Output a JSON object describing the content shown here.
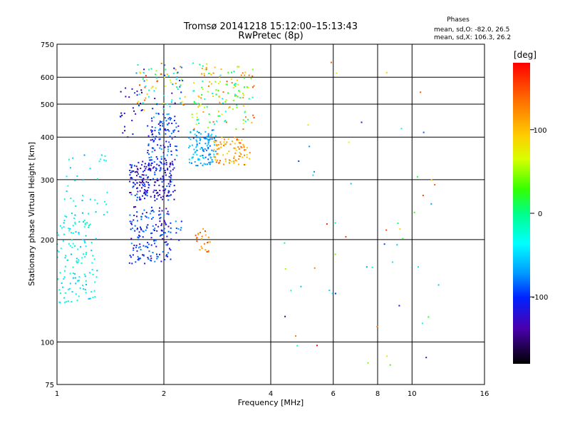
{
  "chart_data": {
    "type": "scatter",
    "title": "Tromsø 20141218 15:12:00–15:13:43",
    "subtitle": "RwPretec (8p)",
    "info": {
      "heading": "Phases",
      "line1": "mean, sd,O: -82.0, 26.5",
      "line2": "mean, sd,X: 106.3, 26.2"
    },
    "xlabel": "Frequency [MHz]",
    "ylabel": "Stationary phase Virtual Height [km]",
    "x_scale": "log",
    "y_scale": "log",
    "xlim": [
      1,
      16
    ],
    "ylim": [
      75,
      750
    ],
    "x_ticks": [
      1,
      2,
      4,
      6,
      8,
      10,
      16
    ],
    "y_ticks": [
      75,
      100,
      200,
      300,
      400,
      500,
      600,
      750
    ],
    "grid": true,
    "colorbar": {
      "label": "[deg]",
      "range": [
        -180,
        180
      ],
      "ticks": [
        100,
        0,
        -100
      ]
    },
    "clusters": [
      {
        "freq": [
          1.0,
          1.3
        ],
        "height": [
          130,
          230
        ],
        "phase": [
          -60,
          -10
        ],
        "n": 130
      },
      {
        "freq": [
          1.05,
          1.4
        ],
        "height": [
          230,
          360
        ],
        "phase": [
          -70,
          -10
        ],
        "n": 40
      },
      {
        "freq": [
          1.6,
          2.15
        ],
        "height": [
          260,
          340
        ],
        "phase": [
          -160,
          -80
        ],
        "n": 200
      },
      {
        "freq": [
          1.6,
          2.1
        ],
        "height": [
          170,
          250
        ],
        "phase": [
          -140,
          -70
        ],
        "n": 170
      },
      {
        "freq": [
          1.8,
          2.2
        ],
        "height": [
          330,
          470
        ],
        "phase": [
          -130,
          -60
        ],
        "n": 130
      },
      {
        "freq": [
          1.65,
          2.3
        ],
        "height": [
          480,
          660
        ],
        "phase": [
          -140,
          160
        ],
        "n": 90
      },
      {
        "freq": [
          1.5,
          1.75
        ],
        "height": [
          400,
          560
        ],
        "phase": [
          -160,
          -100
        ],
        "n": 25
      },
      {
        "freq": [
          2.35,
          2.8
        ],
        "height": [
          330,
          420
        ],
        "phase": [
          -90,
          -40
        ],
        "n": 120
      },
      {
        "freq": [
          2.4,
          3.6
        ],
        "height": [
          420,
          660
        ],
        "phase": [
          -40,
          150
        ],
        "n": 150
      },
      {
        "freq": [
          2.75,
          3.5
        ],
        "height": [
          330,
          400
        ],
        "phase": [
          80,
          150
        ],
        "n": 90
      },
      {
        "freq": [
          2.45,
          2.7
        ],
        "height": [
          180,
          215
        ],
        "phase": [
          100,
          150
        ],
        "n": 25
      },
      {
        "freq": [
          2.1,
          2.25
        ],
        "height": [
          195,
          230
        ],
        "phase": [
          -110,
          -70
        ],
        "n": 8
      },
      {
        "freq": [
          4.2,
          12.0
        ],
        "height": [
          85,
          680
        ],
        "phase": [
          -150,
          180
        ],
        "n": 55
      }
    ]
  }
}
